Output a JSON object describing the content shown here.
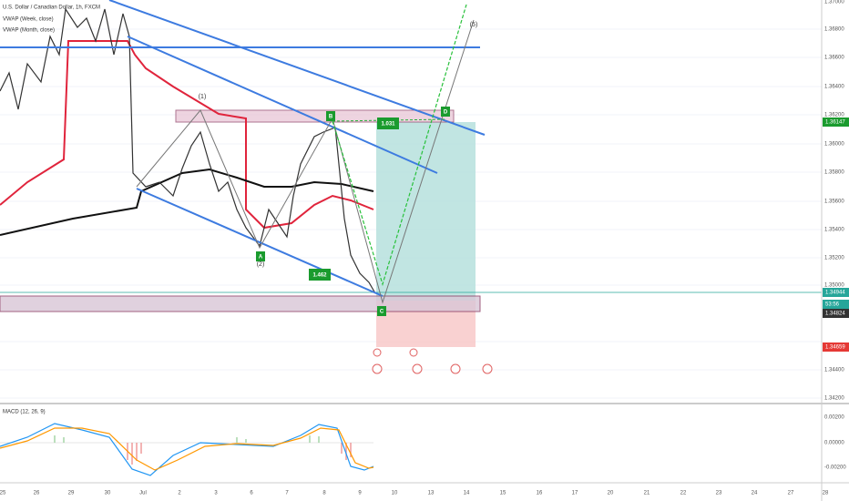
{
  "header": {
    "title": "U.S. Dollar / Canadian Dollar, 1h, FXCM",
    "indicators": [
      "VWAP (Week, close)",
      "VWAP (Month, close)"
    ]
  },
  "price_axis": [
    "1.37000",
    "1.36800",
    "1.36600",
    "1.36400",
    "1.36200",
    "1.36000",
    "1.35800",
    "1.35600",
    "1.35400",
    "1.35200",
    "1.35000",
    "1.34400",
    "1.34200"
  ],
  "price_badges": {
    "target": "1.36147",
    "last": "1.34944",
    "countdown": "53:56",
    "entry": "1.34824",
    "stop": "1.34659"
  },
  "annotations": {
    "wave1": "(1)",
    "wave2": "(2)",
    "wave5": "(5)",
    "a": "A",
    "b": "B",
    "c": "C",
    "d": "D",
    "ratio_bd": "1.031",
    "ratio_ac": "1.462"
  },
  "macd": {
    "title": "MACD (12, 26, 9)",
    "axis": [
      "0.00200",
      "0.00000",
      "-0.00200"
    ]
  },
  "date_axis": [
    "25",
    "26",
    "29",
    "30",
    "Jul",
    "2",
    "3",
    "6",
    "7",
    "8",
    "9",
    "10",
    "13",
    "14",
    "15",
    "16",
    "17",
    "20",
    "21",
    "22",
    "23",
    "24",
    "27",
    "28"
  ]
}
